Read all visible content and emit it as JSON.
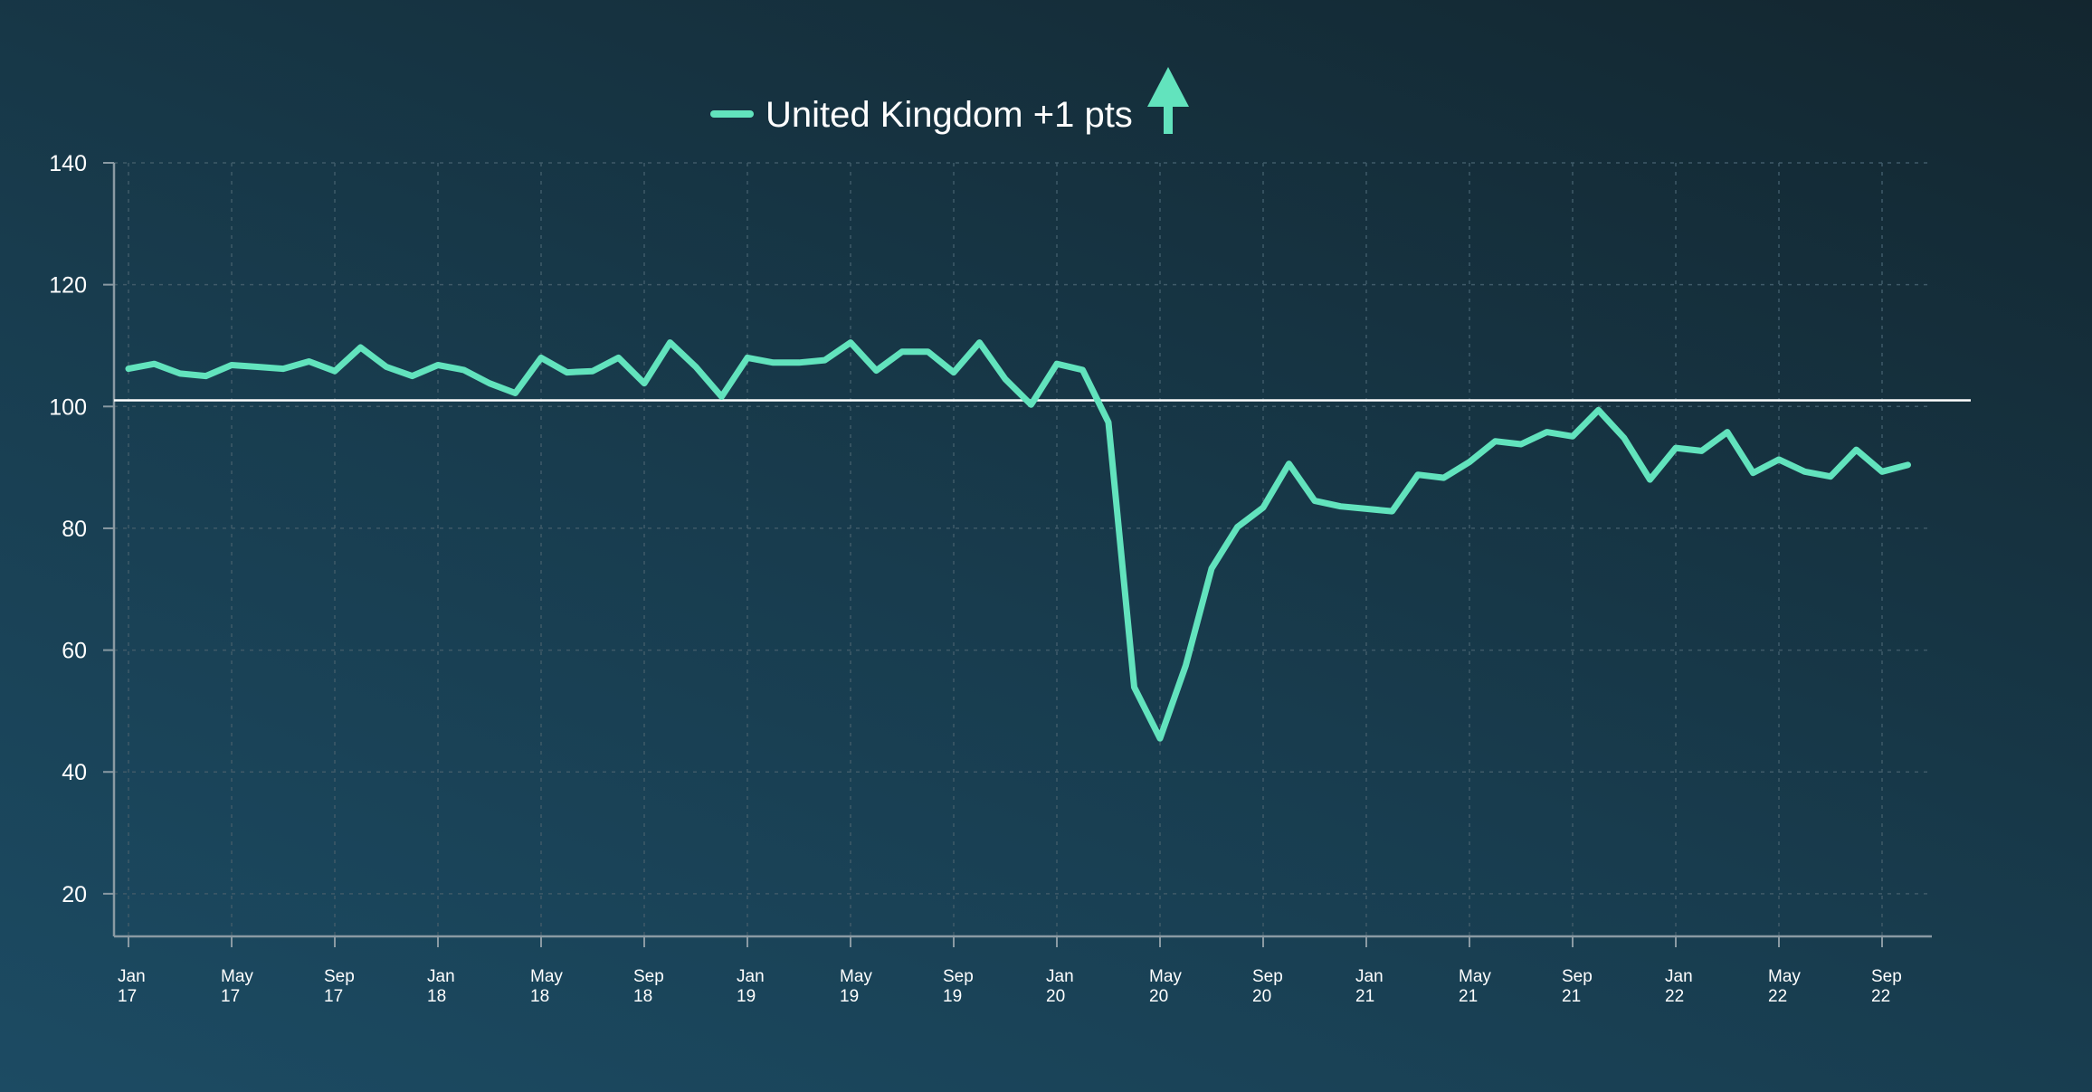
{
  "legend": {
    "label": "United Kingdom +1 pts",
    "trend_icon": "arrow-up-icon"
  },
  "colors": {
    "series": "#62e3bd",
    "reference_line": "#ffffff",
    "axis": "#8a9aa3",
    "grid": "#3f5a68",
    "text": "#ffffff"
  },
  "chart_data": {
    "type": "line",
    "title": "",
    "xlabel": "",
    "ylabel": "",
    "ylim": [
      13,
      140
    ],
    "y_ticks": [
      20,
      40,
      60,
      80,
      100,
      120,
      140
    ],
    "x_ticks": [
      {
        "month": 0,
        "line1": "Jan",
        "line2": "17"
      },
      {
        "month": 4,
        "line1": "May",
        "line2": "17"
      },
      {
        "month": 8,
        "line1": "Sep",
        "line2": "17"
      },
      {
        "month": 12,
        "line1": "Jan",
        "line2": "18"
      },
      {
        "month": 16,
        "line1": "May",
        "line2": "18"
      },
      {
        "month": 20,
        "line1": "Sep",
        "line2": "18"
      },
      {
        "month": 24,
        "line1": "Jan",
        "line2": "19"
      },
      {
        "month": 28,
        "line1": "May",
        "line2": "19"
      },
      {
        "month": 32,
        "line1": "Sep",
        "line2": "19"
      },
      {
        "month": 36,
        "line1": "Jan",
        "line2": "20"
      },
      {
        "month": 40,
        "line1": "May",
        "line2": "20"
      },
      {
        "month": 44,
        "line1": "Sep",
        "line2": "20"
      },
      {
        "month": 48,
        "line1": "Jan",
        "line2": "21"
      },
      {
        "month": 52,
        "line1": "May",
        "line2": "21"
      },
      {
        "month": 56,
        "line1": "Sep",
        "line2": "21"
      },
      {
        "month": 60,
        "line1": "Jan",
        "line2": "22"
      },
      {
        "month": 64,
        "line1": "May",
        "line2": "22"
      },
      {
        "month": 68,
        "line1": "Sep",
        "line2": "22"
      }
    ],
    "reference_line": 101,
    "grid": true,
    "legend_position": "top-center",
    "series": [
      {
        "name": "United Kingdom +1 pts",
        "values": [
          106.2,
          107.0,
          105.4,
          105.0,
          106.8,
          106.5,
          106.2,
          107.4,
          105.8,
          109.7,
          106.5,
          105.0,
          106.8,
          106.0,
          103.8,
          102.2,
          108.0,
          105.6,
          105.8,
          108.0,
          103.8,
          110.5,
          106.5,
          101.6,
          108.0,
          107.2,
          107.2,
          107.6,
          110.5,
          105.9,
          109.0,
          109.0,
          105.6,
          110.5,
          104.5,
          100.3,
          107.0,
          106.0,
          97.4,
          53.9,
          45.5,
          57.5,
          73.4,
          80.2,
          83.4,
          90.6,
          84.5,
          83.6,
          83.2,
          82.8,
          88.8,
          88.3,
          90.9,
          94.3,
          93.8,
          95.8,
          95.1,
          99.4,
          94.8,
          88.0,
          93.2,
          92.7,
          95.8,
          89.1,
          91.3,
          89.3,
          88.5,
          92.9,
          89.3,
          90.4
        ]
      }
    ]
  }
}
